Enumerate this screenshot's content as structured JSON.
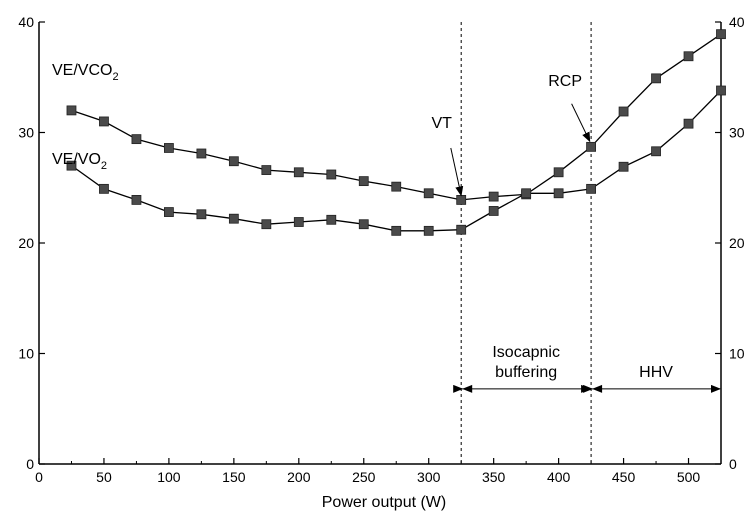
{
  "chart_data": {
    "type": "line",
    "xlabel": "Power output (W)",
    "ylabel": "",
    "xlim": [
      0,
      525
    ],
    "ylim": [
      0,
      40
    ],
    "x_ticks": [
      0,
      50,
      100,
      150,
      200,
      250,
      300,
      350,
      400,
      450,
      500
    ],
    "y_ticks": [
      0,
      10,
      20,
      30,
      40
    ],
    "y_ticks_right": [
      0,
      10,
      20,
      30,
      40
    ],
    "grid": false,
    "x": [
      25,
      50,
      75,
      100,
      125,
      150,
      175,
      200,
      225,
      250,
      275,
      300,
      325,
      350,
      375,
      400,
      425,
      450,
      475,
      500,
      525
    ],
    "series": [
      {
        "name": "VE/VCO2",
        "label_main": "VE/VCO",
        "label_sub": "2",
        "marker": "square",
        "color": "#000000",
        "values": [
          32.0,
          31.0,
          29.4,
          28.6,
          28.1,
          27.4,
          26.6,
          26.4,
          26.2,
          25.6,
          25.1,
          24.5,
          23.9,
          24.2,
          24.4,
          26.4,
          28.7,
          31.9,
          34.9,
          36.9,
          38.9
        ]
      },
      {
        "name": "VE/VO2",
        "label_main": "VE/VO",
        "label_sub": "2",
        "marker": "square",
        "color": "#000000",
        "values": [
          27.0,
          24.9,
          23.9,
          22.8,
          22.6,
          22.2,
          21.7,
          21.9,
          22.1,
          21.7,
          21.1,
          21.1,
          21.2,
          22.9,
          24.5,
          24.5,
          24.9,
          26.9,
          28.3,
          30.8,
          33.8
        ]
      }
    ],
    "vertical_lines": [
      {
        "x": 325,
        "style": "dotted"
      },
      {
        "x": 425,
        "style": "dotted"
      }
    ],
    "annotations": [
      {
        "text": "VT",
        "text_x": 310,
        "text_y": 30.4,
        "arrow_from_x": 317,
        "arrow_from_y": 28.6,
        "arrow_to_x": 325,
        "arrow_to_y": 24.3
      },
      {
        "text": "RCP",
        "text_x": 405,
        "text_y": 34.2,
        "arrow_from_x": 410,
        "arrow_from_y": 32.6,
        "arrow_to_x": 424,
        "arrow_to_y": 29.2
      }
    ],
    "ranges": [
      {
        "line1": "Isocapnic",
        "line2": "buffering",
        "x_start": 325,
        "x_end": 425,
        "y": 6.8
      },
      {
        "line1": "HHV",
        "line2": "",
        "x_start": 425,
        "x_end": 525,
        "y": 6.8
      }
    ],
    "marker_color": "#4a4a4a"
  }
}
